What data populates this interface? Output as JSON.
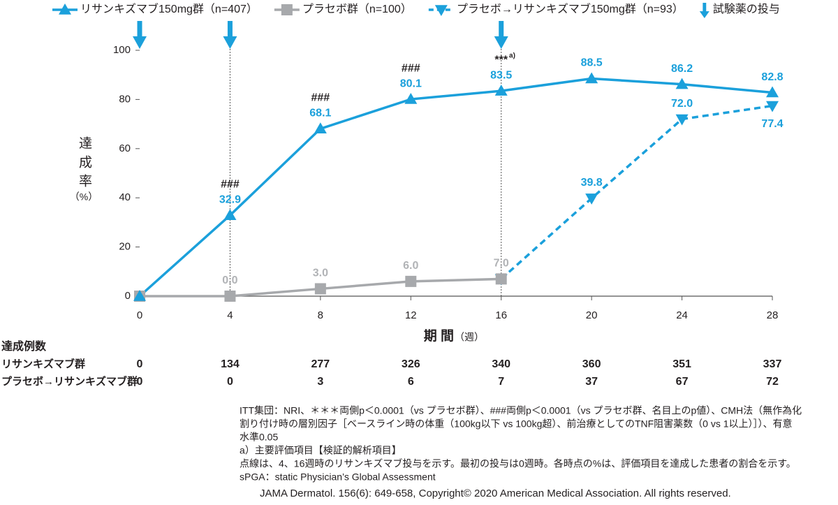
{
  "chart_data": {
    "type": "line",
    "xlabel": "期 間",
    "xlabel_unit": "（週）",
    "ylabel": "達成率",
    "ylabel_unit": "（%）",
    "xlim": [
      0,
      28
    ],
    "xticks": [
      0,
      4,
      8,
      12,
      16,
      20,
      24,
      28
    ],
    "ylim": [
      0,
      100
    ],
    "yticks": [
      0,
      20,
      40,
      60,
      80,
      100
    ],
    "series": [
      {
        "name": "リサンキズマブ150mg群（n=407）",
        "color": "#1ba0db",
        "marker": "triangle-up",
        "dashed": false,
        "x": [
          0,
          4,
          8,
          12,
          16,
          20,
          24,
          28
        ],
        "values": [
          0,
          32.9,
          68.1,
          80.1,
          83.5,
          88.5,
          86.2,
          82.8
        ],
        "value_labels": [
          null,
          "32.9",
          "68.1",
          "80.1",
          "83.5",
          "88.5",
          "86.2",
          "82.8"
        ],
        "annotations": [
          null,
          "###",
          "###",
          "###",
          "***",
          null,
          null,
          null
        ],
        "annotation_superscripts": [
          null,
          null,
          null,
          null,
          "a)",
          null,
          null,
          null
        ]
      },
      {
        "name": "プラセボ群（n=100）",
        "color": "#a7a9ac",
        "marker": "square",
        "dashed": false,
        "x": [
          0,
          4,
          8,
          12,
          16
        ],
        "values": [
          0,
          0,
          3,
          6,
          7
        ],
        "value_labels": [
          null,
          "0.0",
          "3.0",
          "6.0",
          "7.0"
        ]
      },
      {
        "name": "プラセボ→リサンキズマブ150mg群（n=93）",
        "color": "#1ba0db",
        "marker": "triangle-down",
        "dashed": true,
        "x": [
          16,
          20,
          24,
          28
        ],
        "values": [
          7,
          39.8,
          72,
          77.4
        ],
        "value_labels": [
          null,
          "39.8",
          "72.0",
          "77.4"
        ]
      }
    ],
    "dosing": {
      "label": "試験薬の投与",
      "color": "#1ba0db",
      "x": [
        0,
        4,
        16
      ]
    },
    "counts": {
      "title": "達成例数",
      "rows": [
        {
          "name": "リサンキズマブ群",
          "values": [
            0,
            134,
            277,
            326,
            340,
            360,
            351,
            337
          ]
        },
        {
          "name": "プラセボ→リサンキズマブ群",
          "values": [
            0,
            0,
            3,
            6,
            7,
            37,
            67,
            72
          ]
        }
      ]
    }
  },
  "footnotes": [
    "ITT集団：NRI、＊＊＊両側p＜0.0001（vs プラセボ群）、###両側p＜0.0001（vs プラセボ群、名目上のp値）、CMH法（無作為化",
    "割り付け時の層別因子［ベースライン時の体重（100kg以下 vs 100kg超）、前治療としてのTNF阻害薬数（0 vs 1以上）］）、有意",
    "水準0.05",
    "a）主要評価項目【検証的解析項目】",
    "点線は、4、16週時のリサンキズマブ投与を示す。最初の投与は0週時。各時点の%は、評価項目を達成した患者の割合を示す。",
    "sPGA：static Physician’s Global Assessment"
  ],
  "copyright": "JAMA Dermatol. 156(6): 649-658, Copyright© 2020 American Medical Association. All rights reserved."
}
